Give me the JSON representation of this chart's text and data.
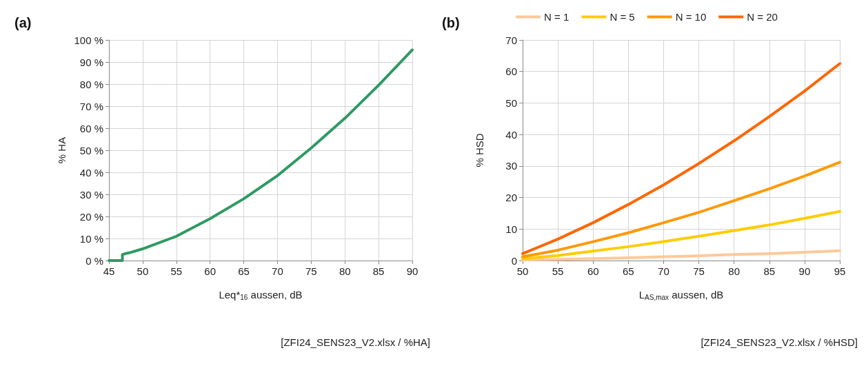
{
  "chart_data": [
    {
      "type": "line",
      "title": "(a)",
      "xlabel": "Leq*$_{16}$ aussen, dB",
      "ylabel": "% HA",
      "x": [
        45,
        46,
        47,
        47,
        47.5,
        48,
        50,
        55,
        60,
        65,
        70,
        75,
        80,
        85,
        90
      ],
      "series": [
        {
          "color": "#2e9a63",
          "values": [
            0,
            0,
            0,
            2.7,
            3.2,
            3.5,
            5.3,
            11,
            19,
            28,
            38.5,
            51,
            64.5,
            79.5,
            95.5
          ]
        }
      ],
      "xlim": [
        45,
        90
      ],
      "xticks": [
        45,
        50,
        55,
        60,
        65,
        70,
        75,
        80,
        85,
        90
      ],
      "ylim": [
        0,
        100
      ],
      "yticks": [
        {
          "value": 0,
          "label": "0 %"
        },
        {
          "value": 10,
          "label": "10 %"
        },
        {
          "value": 20,
          "label": "20 %"
        },
        {
          "value": 30,
          "label": "30 %"
        },
        {
          "value": 40,
          "label": "40 %"
        },
        {
          "value": 50,
          "label": "50 %"
        },
        {
          "value": 60,
          "label": "60 %"
        },
        {
          "value": 70,
          "label": "70 %"
        },
        {
          "value": 80,
          "label": "80 %"
        },
        {
          "value": 90,
          "label": "90 %"
        },
        {
          "value": 100,
          "label": "100 %"
        }
      ],
      "grid": true,
      "legend": false,
      "annotations": [
        "[ZFI24_SENS23_V2.xlsx / %HA]"
      ]
    },
    {
      "type": "line",
      "title": "(b)",
      "xlabel": "L$_{AS,max}$ aussen, dB",
      "ylabel": "% HSD",
      "x": [
        50,
        55,
        60,
        65,
        70,
        75,
        80,
        85,
        90,
        95
      ],
      "series": [
        {
          "name": "N = 1",
          "color": "#ffc89a",
          "values": [
            0.2,
            0.4,
            0.6,
            0.9,
            1.2,
            1.5,
            1.9,
            2.2,
            2.6,
            3.1
          ]
        },
        {
          "name": "N = 5",
          "color": "#ffcc00",
          "values": [
            0.6,
            1.6,
            3,
            4.4,
            6,
            7.7,
            9.5,
            11.3,
            13.4,
            15.6
          ]
        },
        {
          "name": "N = 10",
          "color": "#ff9900",
          "values": [
            1.2,
            3.3,
            6,
            8.8,
            12,
            15.3,
            19,
            22.8,
            26.8,
            31.2
          ]
        },
        {
          "name": "N = 20",
          "color": "#ff6600",
          "values": [
            2.2,
            6.8,
            12,
            17.8,
            24,
            30.8,
            38,
            45.7,
            53.8,
            62.5
          ]
        }
      ],
      "xlim": [
        50,
        95
      ],
      "xticks": [
        50,
        55,
        60,
        65,
        70,
        75,
        80,
        85,
        90,
        95
      ],
      "ylim": [
        0,
        70
      ],
      "yticks": [
        0,
        10,
        20,
        30,
        40,
        50,
        60,
        70
      ],
      "grid": true,
      "legend": "top",
      "annotations": [
        "[ZFI24_SENS23_V2.xlsx / %HSD]"
      ]
    }
  ]
}
